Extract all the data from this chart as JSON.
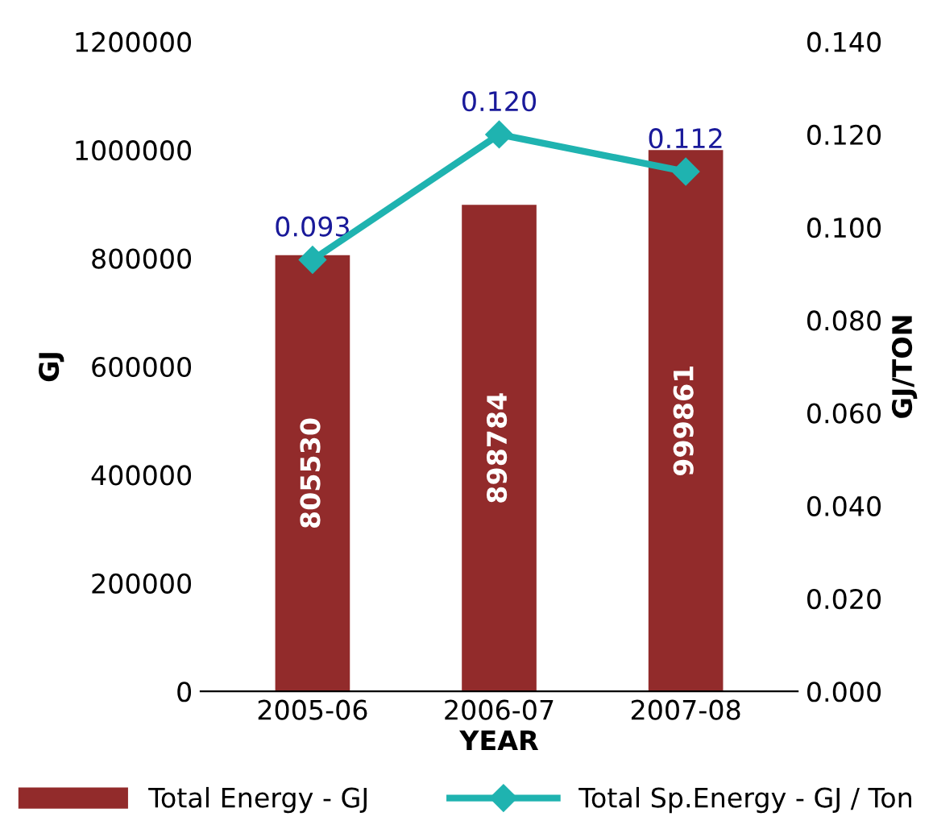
{
  "chart_data": {
    "type": "bar",
    "categories": [
      "2005-06",
      "2006-07",
      "2007-08"
    ],
    "xlabel": "YEAR",
    "ylabel": "GJ",
    "y2label": "GJ/TON",
    "series": [
      {
        "name": "Total Energy - GJ",
        "color": "#922b2b",
        "values": [
          805530,
          898784,
          999861
        ],
        "value_labels": [
          "805530",
          "898784",
          "999861"
        ]
      },
      {
        "name": "Total Sp.Energy - GJ / Ton",
        "type": "line",
        "axis": "y2",
        "color": "#1fb3b0",
        "marker": "diamond",
        "values": [
          0.093,
          0.12,
          0.112
        ],
        "value_labels": [
          "0.093",
          "0.120",
          "0.112"
        ]
      }
    ],
    "ylim": [
      0,
      1200000
    ],
    "yticks": [
      0,
      200000,
      400000,
      600000,
      800000,
      1000000,
      1200000
    ],
    "y2lim": [
      0,
      0.14
    ],
    "y2ticks": [
      {
        "value": 0,
        "label": "0.000"
      },
      {
        "value": 0.02,
        "label": "0.020"
      },
      {
        "value": 0.04,
        "label": "0.040"
      },
      {
        "value": 0.06,
        "label": "0.060"
      },
      {
        "value": 0.08,
        "label": "0.080"
      },
      {
        "value": 0.1,
        "label": "0.100"
      },
      {
        "value": 0.12,
        "label": "0.120"
      },
      {
        "value": 0.14,
        "label": "0.140"
      }
    ],
    "grid": false,
    "legend": "bottom"
  }
}
